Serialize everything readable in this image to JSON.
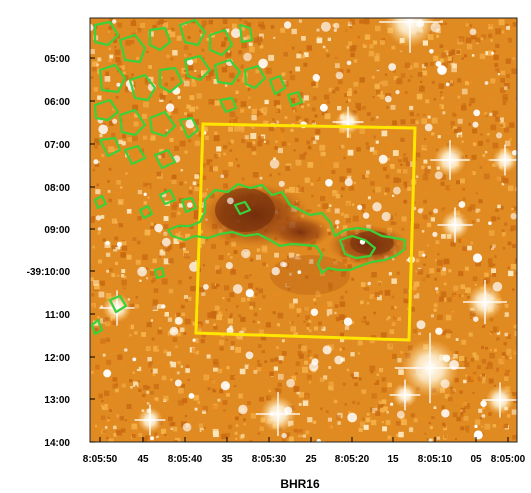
{
  "image": {
    "description": "Optical sky image of a dark globule with green emission contours and yellow box",
    "background_palette": [
      "#c96a12",
      "#e58a1e",
      "#f6b24a",
      "#fde9c0",
      "#7a3410"
    ],
    "contour_color": "#3ad13a",
    "box_color": "#ffe600"
  },
  "axes": {
    "x_title": "BHR16",
    "x_ticks": [
      "8:05:50",
      "45",
      "8:05:40",
      "35",
      "8:05:30",
      "25",
      "8:05:20",
      "15",
      "8:05:10",
      "05",
      "8:05:00"
    ],
    "y_ticks": [
      "05:00",
      "06:00",
      "07:00",
      "08:00",
      "09:00",
      "-39:10:00",
      "11:00",
      "12:00",
      "13:00",
      "14:00"
    ]
  }
}
